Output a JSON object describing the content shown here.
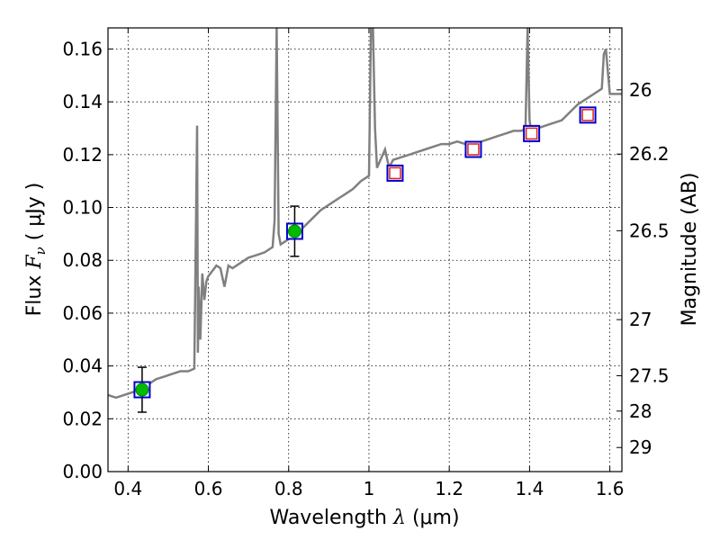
{
  "chart_data": {
    "type": "line",
    "xlabel_text": "Wavelength",
    "xlabel_symbol": "λ",
    "xlabel_unit": "(μm)",
    "ylabel_text": "Flux",
    "ylabel_symbol": "F",
    "ylabel_subscript": "ν",
    "ylabel_unit": "( μJy )",
    "y2label": "Magnitude (AB)",
    "xlim": [
      0.35,
      1.63
    ],
    "ylim": [
      0.0,
      0.168
    ],
    "grid": true,
    "x_ticks": [
      0.4,
      0.6,
      0.8,
      1.0,
      1.2,
      1.4,
      1.6
    ],
    "x_tick_labels": [
      "0.4",
      "0.6",
      "0.8",
      "1",
      "1.2",
      "1.4",
      "1.6"
    ],
    "y_ticks": [
      0.0,
      0.02,
      0.04,
      0.06,
      0.08,
      0.1,
      0.12,
      0.14,
      0.16
    ],
    "y_tick_labels": [
      "0.00",
      "0.02",
      "0.04",
      "0.06",
      "0.08",
      "0.10",
      "0.12",
      "0.14",
      "0.16"
    ],
    "mag_ticks": [
      "26",
      "26.2",
      "26.5",
      "27",
      "27.5",
      "28",
      "29"
    ],
    "colors": {
      "spectrum": "#808080",
      "model_box": "#0000cc",
      "photometry_point": "#00bb00",
      "synthetic_point": "#dd2222",
      "errorbar": "#000000"
    },
    "series": [
      {
        "name": "model spectrum",
        "x": [
          0.35,
          0.37,
          0.39,
          0.41,
          0.43,
          0.45,
          0.47,
          0.49,
          0.51,
          0.53,
          0.55,
          0.565,
          0.572,
          0.574,
          0.576,
          0.58,
          0.585,
          0.59,
          0.595,
          0.6,
          0.61,
          0.62,
          0.63,
          0.64,
          0.65,
          0.66,
          0.67,
          0.68,
          0.7,
          0.72,
          0.74,
          0.76,
          0.765,
          0.77,
          0.775,
          0.78,
          0.8,
          0.82,
          0.84,
          0.86,
          0.88,
          0.9,
          0.92,
          0.94,
          0.96,
          0.98,
          1.0,
          1.005,
          1.01,
          1.015,
          1.02,
          1.04,
          1.05,
          1.06,
          1.08,
          1.1,
          1.12,
          1.14,
          1.16,
          1.18,
          1.2,
          1.22,
          1.24,
          1.26,
          1.28,
          1.3,
          1.32,
          1.34,
          1.36,
          1.38,
          1.39,
          1.395,
          1.4,
          1.405,
          1.42,
          1.44,
          1.46,
          1.48,
          1.5,
          1.52,
          1.54,
          1.56,
          1.58,
          1.585,
          1.59,
          1.6,
          1.63
        ],
        "values": [
          0.029,
          0.028,
          0.029,
          0.03,
          0.031,
          0.033,
          0.035,
          0.036,
          0.037,
          0.038,
          0.038,
          0.039,
          0.131,
          0.045,
          0.07,
          0.05,
          0.075,
          0.065,
          0.072,
          0.074,
          0.076,
          0.078,
          0.077,
          0.07,
          0.078,
          0.077,
          0.078,
          0.079,
          0.081,
          0.082,
          0.083,
          0.085,
          0.095,
          0.168,
          0.09,
          0.086,
          0.088,
          0.09,
          0.093,
          0.096,
          0.099,
          0.101,
          0.103,
          0.105,
          0.107,
          0.11,
          0.112,
          0.168,
          0.168,
          0.13,
          0.115,
          0.122,
          0.115,
          0.118,
          0.119,
          0.12,
          0.121,
          0.122,
          0.123,
          0.124,
          0.124,
          0.125,
          0.124,
          0.123,
          0.125,
          0.126,
          0.127,
          0.128,
          0.129,
          0.129,
          0.13,
          0.168,
          0.133,
          0.128,
          0.13,
          0.131,
          0.132,
          0.133,
          0.136,
          0.139,
          0.141,
          0.143,
          0.145,
          0.158,
          0.16,
          0.143,
          0.143
        ]
      },
      {
        "name": "photometry",
        "x": [
          0.435,
          0.815
        ],
        "values": [
          0.031,
          0.091
        ],
        "error": [
          0.0085,
          0.0095
        ]
      },
      {
        "name": "model band flux",
        "x": [
          0.435,
          0.815,
          1.065,
          1.26,
          1.405,
          1.545
        ],
        "values": [
          0.031,
          0.091,
          0.113,
          0.122,
          0.128,
          0.135
        ]
      },
      {
        "name": "synthetic photometry",
        "x": [
          1.065,
          1.26,
          1.405,
          1.545
        ],
        "values": [
          0.113,
          0.122,
          0.128,
          0.135
        ]
      }
    ]
  }
}
